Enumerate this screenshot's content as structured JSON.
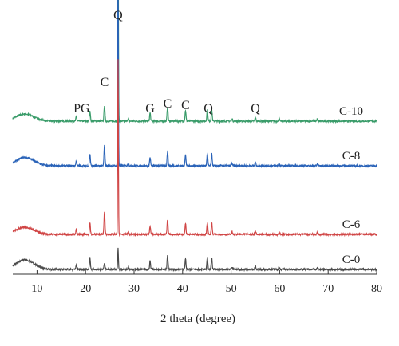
{
  "chart_data": {
    "type": "line",
    "xlabel": "2 theta (degree)",
    "ylabel": "",
    "title": "",
    "xlim": [
      5,
      80
    ],
    "x_ticks": [
      10,
      20,
      30,
      40,
      50,
      60,
      70,
      80
    ],
    "grid": false,
    "legend": "none",
    "series": [
      {
        "name": "C-10",
        "color": "#3a9c6a",
        "offset": 3.0
      },
      {
        "name": "C-8",
        "color": "#2a63b8",
        "offset": 2.0
      },
      {
        "name": "C-6",
        "color": "#d04545",
        "offset": 1.0
      },
      {
        "name": "C-0",
        "color": "#4a4a4a",
        "offset": 0.0
      }
    ],
    "peak_labels": [
      {
        "text": "PG",
        "x": 19.2
      },
      {
        "text": "C",
        "x": 23.9
      },
      {
        "text": "Q",
        "x": 26.7
      },
      {
        "text": "G",
        "x": 33.3
      },
      {
        "text": "C",
        "x": 36.9
      },
      {
        "text": "C",
        "x": 40.6
      },
      {
        "text": "Q",
        "x": 45.3
      },
      {
        "text": "Q",
        "x": 55.0
      }
    ]
  }
}
